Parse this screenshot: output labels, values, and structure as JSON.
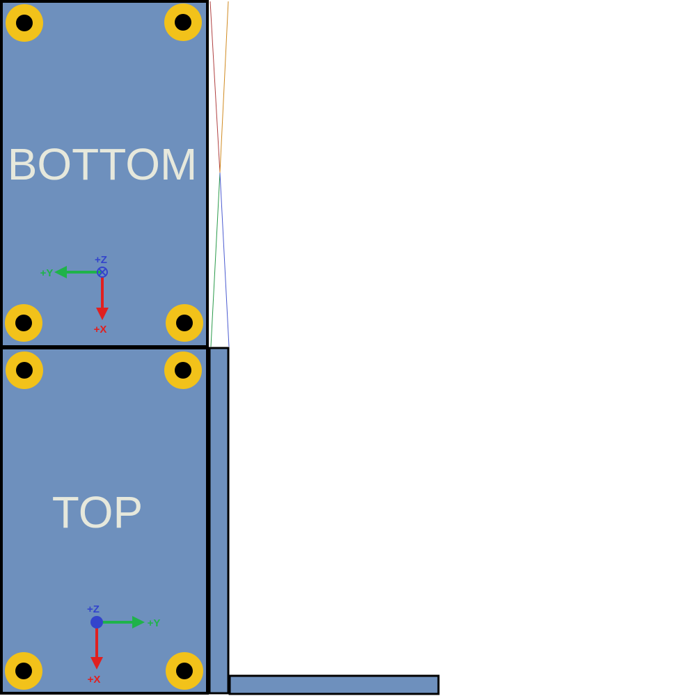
{
  "panels": {
    "bottom": {
      "label": "BOTTOM"
    },
    "top": {
      "label": "TOP"
    }
  },
  "axes": {
    "bottom": {
      "x_label": "+X",
      "y_label": "+Y",
      "z_label": "+Z",
      "z_symbol": "into-page-cross"
    },
    "top": {
      "x_label": "+X",
      "y_label": "+Y",
      "z_label": "+Z",
      "z_symbol": "out-of-page-dot"
    }
  },
  "colors": {
    "panel_fill": "#6e90bd",
    "panel_stroke": "#000000",
    "label_text": "#e6e8dc",
    "hole_ring": "#f2c21a",
    "hole_center": "#000000",
    "x_axis": "#e02020",
    "y_axis": "#1fb34a",
    "z_axis": "#3344cc"
  }
}
